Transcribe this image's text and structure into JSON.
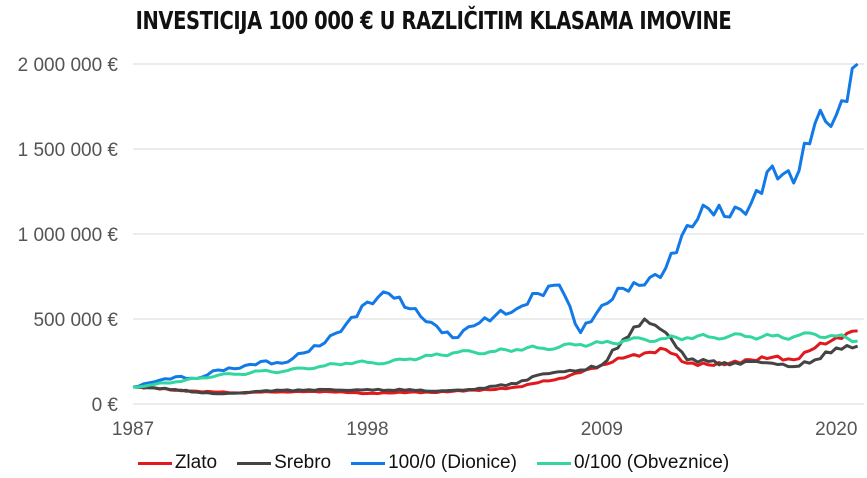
{
  "title": "INVESTICIJA 100 000 € U RAZLIČITIM KLASAMA IMOVINE",
  "chart_data": {
    "type": "line",
    "title": "INVESTICIJA 100 000 € U RAZLIČITIM KLASAMA IMOVINE",
    "xlabel": "",
    "ylabel": "",
    "x_ticks": [
      "1987",
      "1998",
      "2009",
      "2020"
    ],
    "y_ticks": [
      "0 €",
      "500 000 €",
      "1 000 000 €",
      "1 500 000 €",
      "2 000 000 €"
    ],
    "ylim": [
      0,
      2000000
    ],
    "xlim": [
      1987,
      2021.3
    ],
    "grid": true,
    "legend_position": "bottom",
    "x": [
      1987,
      1988,
      1989,
      1990,
      1991,
      1992,
      1993,
      1994,
      1995,
      1996,
      1997,
      1998,
      1999,
      2000,
      2001,
      2002,
      2003,
      2004,
      2005,
      2006,
      2007,
      2008,
      2009,
      2010,
      2011,
      2012,
      2013,
      2014,
      2015,
      2016,
      2017,
      2018,
      2019,
      2020,
      2021
    ],
    "series": [
      {
        "name": "Zlato",
        "color": "#e0191e",
        "values": [
          100000,
          95000,
          80000,
          75000,
          70000,
          65000,
          70000,
          72000,
          72000,
          74000,
          68000,
          62000,
          65000,
          70000,
          68000,
          75000,
          82000,
          85000,
          100000,
          125000,
          150000,
          185000,
          230000,
          270000,
          300000,
          320000,
          240000,
          230000,
          240000,
          260000,
          275000,
          260000,
          330000,
          390000,
          430000
        ]
      },
      {
        "name": "Srebro",
        "color": "#444444",
        "values": [
          100000,
          95000,
          85000,
          70000,
          60000,
          65000,
          75000,
          80000,
          80000,
          85000,
          80000,
          85000,
          82000,
          85000,
          75000,
          80000,
          85000,
          105000,
          120000,
          170000,
          190000,
          200000,
          230000,
          380000,
          500000,
          420000,
          260000,
          250000,
          230000,
          250000,
          240000,
          220000,
          260000,
          330000,
          340000
        ]
      },
      {
        "name": "100/0 (Dionice)",
        "color": "#1279e8",
        "values": [
          100000,
          130000,
          160000,
          150000,
          200000,
          210000,
          250000,
          240000,
          300000,
          360000,
          470000,
          600000,
          650000,
          560000,
          480000,
          390000,
          460000,
          520000,
          560000,
          650000,
          700000,
          420000,
          580000,
          680000,
          700000,
          800000,
          1050000,
          1150000,
          1100000,
          1180000,
          1400000,
          1300000,
          1650000,
          1700000,
          2000000
        ]
      },
      {
        "name": "0/100 (Obveznice)",
        "color": "#33d6a0",
        "values": [
          100000,
          115000,
          130000,
          150000,
          170000,
          175000,
          195000,
          190000,
          210000,
          225000,
          240000,
          245000,
          245000,
          265000,
          285000,
          300000,
          305000,
          310000,
          320000,
          330000,
          335000,
          350000,
          360000,
          370000,
          380000,
          385000,
          390000,
          395000,
          400000,
          395000,
          400000,
          395000,
          410000,
          400000,
          370000
        ]
      }
    ]
  }
}
